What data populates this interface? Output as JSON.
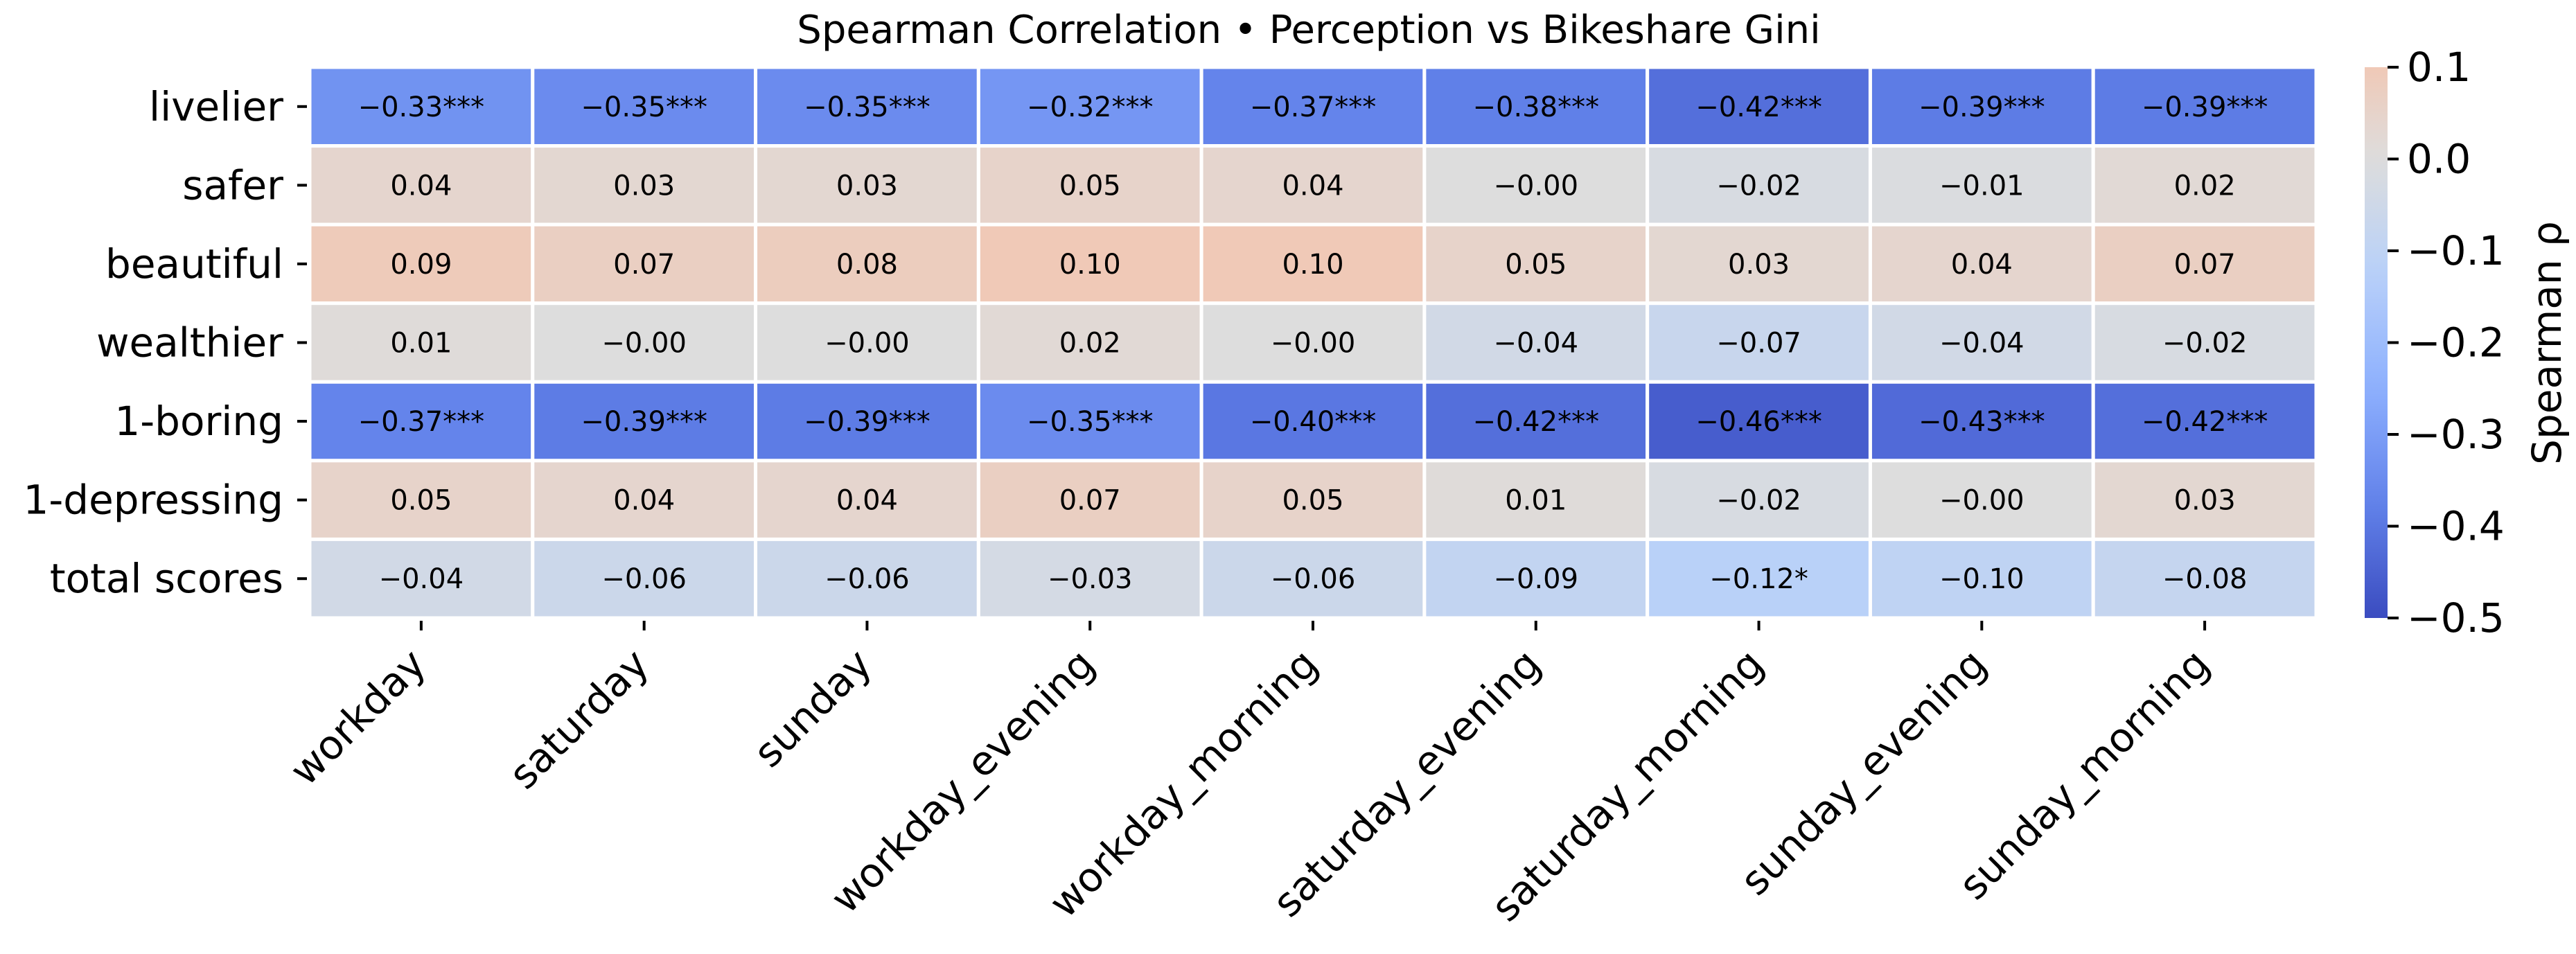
{
  "chart_data": {
    "type": "heatmap",
    "title": "Spearman Correlation • Perception vs Bikeshare Gini",
    "rows": [
      "livelier",
      "safer",
      "beautiful",
      "wealthier",
      "1-boring",
      "1-depressing",
      "total scores"
    ],
    "columns": [
      "workday",
      "saturday",
      "sunday",
      "workday_evening",
      "workday_morning",
      "saturday_evening",
      "saturday_morning",
      "sunday_evening",
      "sunday_morning"
    ],
    "values": [
      [
        -0.33,
        -0.35,
        -0.35,
        -0.32,
        -0.37,
        -0.38,
        -0.42,
        -0.39,
        -0.39
      ],
      [
        0.04,
        0.03,
        0.03,
        0.05,
        0.04,
        -0.0,
        -0.02,
        -0.01,
        0.02
      ],
      [
        0.09,
        0.07,
        0.08,
        0.1,
        0.1,
        0.05,
        0.03,
        0.04,
        0.07
      ],
      [
        0.01,
        -0.0,
        -0.0,
        0.02,
        -0.0,
        -0.04,
        -0.07,
        -0.04,
        -0.02
      ],
      [
        -0.37,
        -0.39,
        -0.39,
        -0.35,
        -0.4,
        -0.42,
        -0.46,
        -0.43,
        -0.42
      ],
      [
        0.05,
        0.04,
        0.04,
        0.07,
        0.05,
        0.01,
        -0.02,
        -0.0,
        0.03
      ],
      [
        -0.04,
        -0.06,
        -0.06,
        -0.03,
        -0.06,
        -0.09,
        -0.12,
        -0.1,
        -0.08
      ]
    ],
    "annotations": [
      [
        "−0.33***",
        "−0.35***",
        "−0.35***",
        "−0.32***",
        "−0.37***",
        "−0.38***",
        "−0.42***",
        "−0.39***",
        "−0.39***"
      ],
      [
        "0.04",
        "0.03",
        "0.03",
        "0.05",
        "0.04",
        "−0.00",
        "−0.02",
        "−0.01",
        "0.02"
      ],
      [
        "0.09",
        "0.07",
        "0.08",
        "0.10",
        "0.10",
        "0.05",
        "0.03",
        "0.04",
        "0.07"
      ],
      [
        "0.01",
        "−0.00",
        "−0.00",
        "0.02",
        "−0.00",
        "−0.04",
        "−0.07",
        "−0.04",
        "−0.02"
      ],
      [
        "−0.37***",
        "−0.39***",
        "−0.39***",
        "−0.35***",
        "−0.40***",
        "−0.42***",
        "−0.46***",
        "−0.43***",
        "−0.42***"
      ],
      [
        "0.05",
        "0.04",
        "0.04",
        "0.07",
        "0.05",
        "0.01",
        "−0.02",
        "−0.00",
        "0.03"
      ],
      [
        "−0.04",
        "−0.06",
        "−0.06",
        "−0.03",
        "−0.06",
        "−0.09",
        "−0.12*",
        "−0.10",
        "−0.08"
      ]
    ],
    "colorbar": {
      "label": "Spearman ρ",
      "range": [
        -0.5,
        0.1
      ],
      "ticks": [
        0.1,
        0.0,
        -0.1,
        -0.2,
        -0.3,
        -0.4,
        -0.5
      ],
      "tick_labels": [
        "0.1",
        "0.0",
        "−0.1",
        "−0.2",
        "−0.3",
        "−0.4",
        "−0.5"
      ],
      "colormap": "coolwarm",
      "colormap_range": [
        -0.5,
        0.5
      ]
    },
    "grid": false,
    "legend": "colorbar-right"
  }
}
